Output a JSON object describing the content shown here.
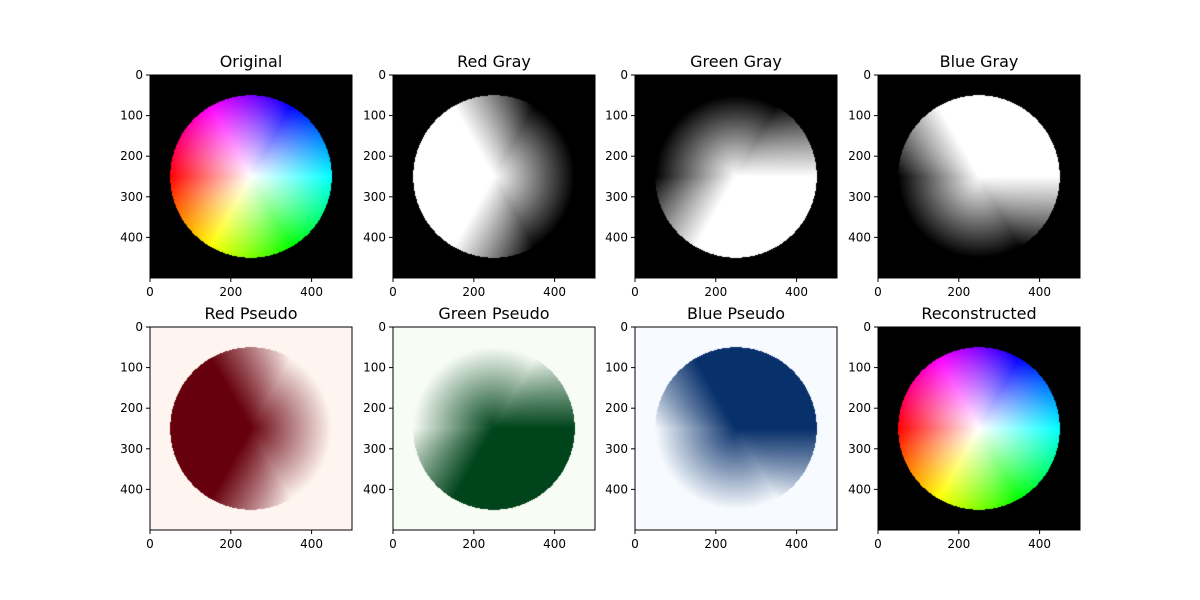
{
  "chart_data": [
    {
      "type": "heatmap",
      "title": "Original",
      "render": "color",
      "xticks": [
        0,
        200,
        400
      ],
      "yticks": [
        0,
        100,
        200,
        300,
        400
      ],
      "xlim": [
        0,
        500
      ],
      "ylim": [
        500,
        0
      ],
      "image": {
        "width": 500,
        "height": 500,
        "circle_center": [
          250,
          250
        ],
        "circle_radius": 200,
        "background": "#000000",
        "content": "HSV color wheel (hue by angle, saturation by radius, value 1)"
      }
    },
    {
      "type": "heatmap",
      "title": "Red Gray",
      "render": "gray",
      "channel": "red",
      "colormap": "gray",
      "background": "#000000",
      "xticks": [
        0,
        200,
        400
      ],
      "yticks": [
        0,
        100,
        200,
        300,
        400
      ],
      "xlim": [
        0,
        500
      ],
      "ylim": [
        500,
        0
      ]
    },
    {
      "type": "heatmap",
      "title": "Green Gray",
      "render": "gray",
      "channel": "green",
      "colormap": "gray",
      "background": "#000000",
      "xticks": [
        0,
        200,
        400
      ],
      "yticks": [
        0,
        100,
        200,
        300,
        400
      ],
      "xlim": [
        0,
        500
      ],
      "ylim": [
        500,
        0
      ]
    },
    {
      "type": "heatmap",
      "title": "Blue Gray",
      "render": "gray",
      "channel": "blue",
      "colormap": "gray",
      "background": "#000000",
      "xticks": [
        0,
        200,
        400
      ],
      "yticks": [
        0,
        100,
        200,
        300,
        400
      ],
      "xlim": [
        0,
        500
      ],
      "ylim": [
        500,
        0
      ]
    },
    {
      "type": "heatmap",
      "title": "Red Pseudo",
      "render": "pseudo",
      "channel": "red",
      "colormap": "Reds",
      "colormap_low": "#fff5f0",
      "colormap_high": "#67000d",
      "background": "#fff5f0",
      "xticks": [
        0,
        200,
        400
      ],
      "yticks": [
        0,
        100,
        200,
        300,
        400
      ],
      "xlim": [
        0,
        500
      ],
      "ylim": [
        500,
        0
      ]
    },
    {
      "type": "heatmap",
      "title": "Green Pseudo",
      "render": "pseudo",
      "channel": "green",
      "colormap": "Greens",
      "colormap_low": "#f7fcf5",
      "colormap_high": "#00441b",
      "background": "#f7fcf5",
      "xticks": [
        0,
        200,
        400
      ],
      "yticks": [
        0,
        100,
        200,
        300,
        400
      ],
      "xlim": [
        0,
        500
      ],
      "ylim": [
        500,
        0
      ]
    },
    {
      "type": "heatmap",
      "title": "Blue Pseudo",
      "render": "pseudo",
      "channel": "blue",
      "colormap": "Blues",
      "colormap_low": "#f7fbff",
      "colormap_high": "#08306b",
      "background": "#f7fbff",
      "xticks": [
        0,
        200,
        400
      ],
      "yticks": [
        0,
        100,
        200,
        300,
        400
      ],
      "xlim": [
        0,
        500
      ],
      "ylim": [
        500,
        0
      ]
    },
    {
      "type": "heatmap",
      "title": "Reconstructed",
      "render": "color",
      "background": "#000000",
      "xticks": [
        0,
        200,
        400
      ],
      "yticks": [
        0,
        100,
        200,
        300,
        400
      ],
      "xlim": [
        0,
        500
      ],
      "ylim": [
        500,
        0
      ]
    }
  ]
}
